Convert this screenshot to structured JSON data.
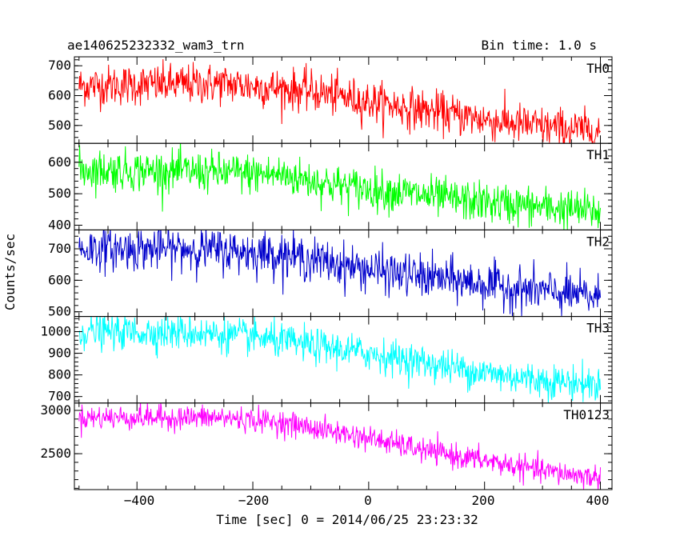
{
  "header": {
    "title": "ae140625232332_wam3_trn",
    "bin_time": "Bin time: 1.0 s"
  },
  "axes": {
    "xlabel": "Time [sec] 0 = 2014/06/25 23:23:32",
    "ylabel": "Counts/sec",
    "x_ticks": [
      "−400",
      "−200",
      "0",
      "200",
      "400"
    ]
  },
  "chart_data": {
    "type": "line",
    "title": "ae140625232332_wam3_trn",
    "xlabel": "Time [sec] 0 = 2014/06/25 23:23:32",
    "ylabel": "Counts/sec",
    "xlim": [
      -508,
      420
    ],
    "x_range": [
      -500,
      400
    ],
    "bin_time_s": 1.0,
    "x_major_ticks": [
      -400,
      -200,
      0,
      200,
      400
    ],
    "panels": [
      {
        "name": "TH0",
        "color": "#ff0000",
        "ylim": [
          440,
          730
        ],
        "y_ticks": [
          500,
          600,
          700
        ],
        "y_tick_labels": [
          "500",
          "600",
          "700"
        ],
        "trend_x": [
          -500,
          -250,
          -100,
          0,
          100,
          200,
          300,
          400
        ],
        "trend_y": [
          633,
          640,
          615,
          580,
          550,
          520,
          495,
          480
        ],
        "noise_amp": 34
      },
      {
        "name": "TH1",
        "color": "#00ff00",
        "ylim": [
          385,
          660
        ],
        "y_ticks": [
          400,
          500,
          600
        ],
        "y_tick_labels": [
          "400",
          "500",
          "600"
        ],
        "trend_x": [
          -500,
          -300,
          -150,
          -50,
          50,
          150,
          250,
          400
        ],
        "trend_y": [
          577,
          570,
          560,
          525,
          505,
          480,
          465,
          442
        ],
        "noise_amp": 32
      },
      {
        "name": "TH2",
        "color": "#0000cc",
        "ylim": [
          485,
          760
        ],
        "y_ticks": [
          500,
          600,
          700
        ],
        "y_tick_labels": [
          "500",
          "600",
          "700"
        ],
        "trend_x": [
          -500,
          -300,
          -150,
          -50,
          50,
          150,
          250,
          400
        ],
        "trend_y": [
          700,
          700,
          683,
          650,
          620,
          600,
          575,
          545
        ],
        "noise_amp": 34
      },
      {
        "name": "TH3",
        "color": "#00ffff",
        "ylim": [
          670,
          1070
        ],
        "y_ticks": [
          700,
          800,
          900,
          1000
        ],
        "y_tick_labels": [
          "700",
          "800",
          "900",
          "1000"
        ],
        "trend_x": [
          -500,
          -300,
          -200,
          -100,
          0,
          100,
          200,
          300,
          400
        ],
        "trend_y": [
          1000,
          995,
          975,
          935,
          900,
          855,
          810,
          775,
          755
        ],
        "noise_amp": 40
      },
      {
        "name": "TH0123",
        "color": "#ff00ff",
        "ylim": [
          2085,
          3085
        ],
        "y_ticks": [
          2500,
          3000
        ],
        "y_tick_labels": [
          "2500",
          "3000"
        ],
        "trend_x": [
          -500,
          -250,
          -150,
          0,
          100,
          200,
          300,
          400
        ],
        "trend_y": [
          2920,
          2915,
          2860,
          2680,
          2530,
          2420,
          2300,
          2220
        ],
        "noise_amp": 70
      }
    ]
  }
}
